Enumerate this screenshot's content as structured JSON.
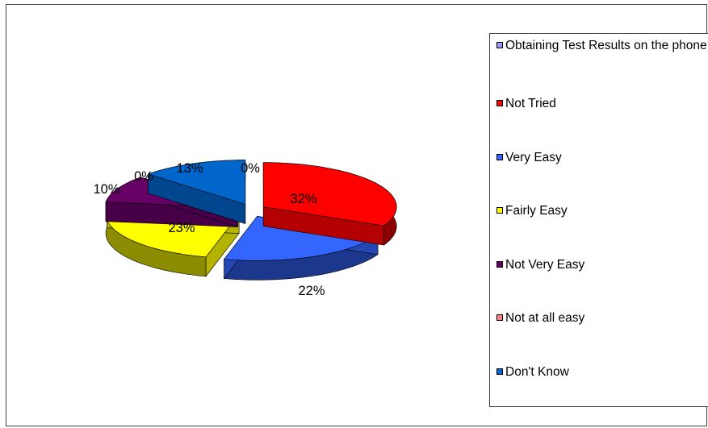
{
  "chart_data": {
    "type": "pie",
    "title": "",
    "legend_position": "right",
    "legend_title": "Obtaining Test Results on the phone",
    "categories": [
      "Not Tried",
      "Very Easy",
      "Fairly Easy",
      "Not Very Easy",
      "Not at all easy",
      "Don't Know"
    ],
    "values": [
      32,
      22,
      23,
      10,
      0,
      13
    ],
    "labels": [
      "32%",
      "22%",
      "23%",
      "10%",
      "0%",
      "13%"
    ],
    "legend_title_label": "0%",
    "colors": {
      "legend_title_swatch": "#9999ff",
      "Not Tried": "#ff0000",
      "Very Easy": "#3366ff",
      "Fairly Easy": "#ffff00",
      "Not Very Easy": "#660066",
      "Not at all easy": "#ff8080",
      "Don't Know": "#0066cc"
    }
  }
}
